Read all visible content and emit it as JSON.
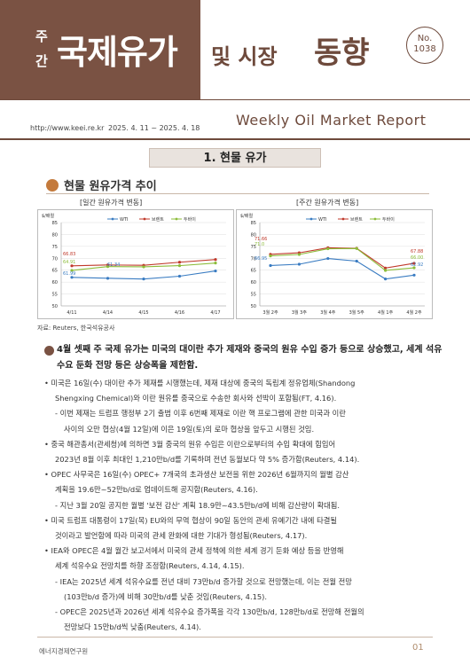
{
  "header": {
    "ju": "주",
    "gan": "간",
    "title_main": "국제유가",
    "title_mid": "및 시장",
    "title_end": "동향",
    "issue_no": "No.",
    "issue_num": "1038",
    "url": "http://www.keei.re.kr",
    "date_range": "2025. 4. 11 ~ 2025. 4. 18",
    "weekly": "Weekly Oil Market Report"
  },
  "section": {
    "title": "1. 현물 유가"
  },
  "subsection": {
    "title": "현물 원유가격 추이"
  },
  "chart_data": [
    {
      "type": "line",
      "title": "[일간 원유가격 변동]",
      "unit": "$/배럴",
      "categories": [
        "4/11",
        "4/14",
        "4/15",
        "4/16",
        "4/17"
      ],
      "ylim": [
        50,
        85
      ],
      "yticks": [
        50,
        55,
        60,
        65,
        70,
        75,
        80,
        85
      ],
      "series": [
        {
          "name": "WTI",
          "color": "#3a7cc2",
          "values": [
            61.99,
            61.6,
            61.3,
            62.47,
            64.68
          ]
        },
        {
          "name": "브렌트",
          "color": "#c0392b",
          "values": [
            66.83,
            67.2,
            67.04,
            68.34,
            69.47
          ]
        },
        {
          "name": "두바이",
          "color": "#8cbc3a",
          "values": [
            64.91,
            66.5,
            66.4,
            66.9,
            68.0
          ]
        }
      ],
      "labels": [
        "66.83",
        "64.91",
        "61.99",
        "61.34"
      ]
    },
    {
      "type": "line",
      "title": "[주간 원유가격 변동]",
      "unit": "$/배럴",
      "categories": [
        "3월 2주",
        "3월 3주",
        "3월 4주",
        "3월 5주",
        "4월 1주",
        "4월 2주"
      ],
      "ylim": [
        50,
        85
      ],
      "yticks": [
        50,
        55,
        60,
        65,
        70,
        75,
        80,
        85
      ],
      "series": [
        {
          "name": "WTI",
          "color": "#3a7cc2",
          "values": [
            66.95,
            67.5,
            69.9,
            68.8,
            61.3,
            62.92
          ]
        },
        {
          "name": "브렌트",
          "color": "#c0392b",
          "values": [
            71.66,
            72.3,
            74.4,
            74.2,
            65.9,
            67.88
          ]
        },
        {
          "name": "두바이",
          "color": "#8cbc3a",
          "values": [
            71.0,
            71.6,
            74.0,
            74.1,
            64.9,
            66.0
          ]
        }
      ],
      "labels": [
        "71.66",
        "71.0",
        "66.95",
        "67.88",
        "66.00",
        "62.92"
      ]
    }
  ],
  "source": "자료: Reuters, 한국석유공사",
  "lead": "4월 셋째 주 국제 유가는 미국의 대이란 추가 제재와 중국의 원유 수입 증가 등으로 상승했고, 세계 석유수요 둔화 전망 등은 상승폭을 제한함.",
  "paragraphs": [
    {
      "indent": 1,
      "text": "• 미국은 16일(수) 대이란 추가 제재를 시행했는데, 제재 대상에 중국의 독립계 정유업체(Shandong"
    },
    {
      "indent": 2,
      "text": "Shengxing Chemical)와 이란 원유를 중국으로 수송한 회사와 선박이 포함됨(FT, 4.16)."
    },
    {
      "indent": 3,
      "text": "- 이번 제재는 트럼프 행정부 2기 출범 이후 6번째 제재로 이란 핵 프로그램에 관한 미국과 이란"
    },
    {
      "indent": 4,
      "text": "사이의 오만 협상(4월 12일)에 이은 19일(토)의 로마 협상을 앞두고 시행된 것임."
    },
    {
      "indent": 1,
      "text": "• 중국 해관총서(관세청)에 의하면 3월 중국의 원유 수입은 이란으로부터의 수입 확대에 힘입어"
    },
    {
      "indent": 2,
      "text": "2023년 8월 이후 최대인 1,210만b/d를 기록하며 전년 동월보다 약 5% 증가함(Reuters, 4.14)."
    },
    {
      "indent": 1,
      "text": "• OPEC 사무국은 16일(수) OPEC+ 7개국의 초과생산 보전을 위한 2026년 6월까지의 월별 감산"
    },
    {
      "indent": 2,
      "text": "계획을 19.6만~52만b/d로 업데이트해 공지함(Reuters, 4.16)."
    },
    {
      "indent": 3,
      "text": "- 지난 3월 20일 공지한 월별 '보전 감산' 계획 18.9만~43.5만b/d에 비해 감산량이 확대됨."
    },
    {
      "indent": 1,
      "text": "• 미국 트럼프 대통령이 17일(목) EU와의 무역 협상이 90일 동안의 관세 유예기간 내에 타결될"
    },
    {
      "indent": 2,
      "text": "것이라고 발언함에 따라 미국의 관세 완화에 대한 기대가 형성됨(Reuters, 4.17)."
    },
    {
      "indent": 1,
      "text": "• IEA와 OPEC은 4월 월간 보고서에서 미국의 관세 정책에 의한 세계 경기 둔화 예상 등을 반영해"
    },
    {
      "indent": 2,
      "text": "세계 석유수요 전망치를 하향 조정함(Reuters, 4.14, 4.15)."
    },
    {
      "indent": 3,
      "text": "- IEA는 2025년 세계 석유수요를 전년 대비 73만b/d 증가할 것으로 전망했는데, 이는 전월 전망"
    },
    {
      "indent": 4,
      "text": "(103만b/d 증가)에 비해 30만b/d를 낮춘 것임(Reuters, 4.15)."
    },
    {
      "indent": 3,
      "text": "- OPEC은 2025년과 2026년 세계 석유수요 증가폭을 각각 130만b/d, 128만b/d로 전망해 전월의"
    },
    {
      "indent": 4,
      "text": "전망보다 15만b/d씩 낮춤(Reuters, 4.14)."
    }
  ],
  "footer": {
    "org": "에너지경제연구원",
    "page": "01"
  }
}
